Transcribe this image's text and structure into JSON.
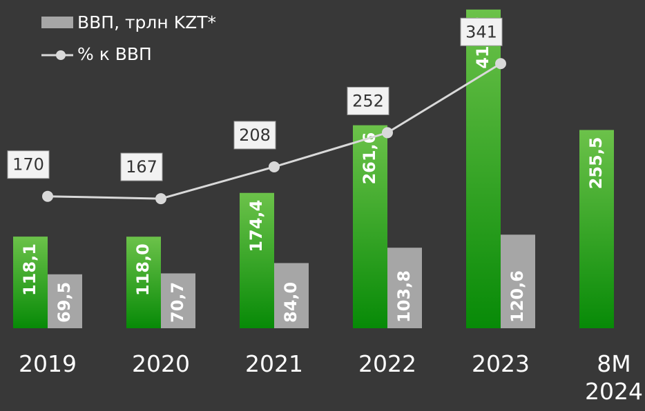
{
  "chart_data": {
    "type": "bar",
    "categories": [
      "2019",
      "2020",
      "2021",
      "2022",
      "2023",
      "8M 2024"
    ],
    "ylim": [
      0,
      423
    ],
    "series": [
      {
        "color": "#1a9a1a",
        "values": [
          118.1,
          118.0,
          174.4,
          261.6,
          410.7,
          255.5
        ],
        "value_labels": [
          "118,1",
          "118,0",
          "174,4",
          "261,6",
          "410,7",
          "255,5"
        ]
      },
      {
        "name": "ВВП, трлн KZT*",
        "color": "#a6a6a6",
        "values": [
          69.5,
          70.7,
          84.0,
          103.8,
          120.6,
          null
        ],
        "value_labels": [
          "69,5",
          "70,7",
          "84,0",
          "103,8",
          "120,6",
          null
        ]
      },
      {
        "name": "% к ВВП",
        "type": "line",
        "axis": "y2",
        "color": "#d9d9d9",
        "values": [
          170,
          167,
          208,
          252,
          341,
          null
        ]
      }
    ],
    "y2lim": [
      0,
      423
    ]
  }
}
